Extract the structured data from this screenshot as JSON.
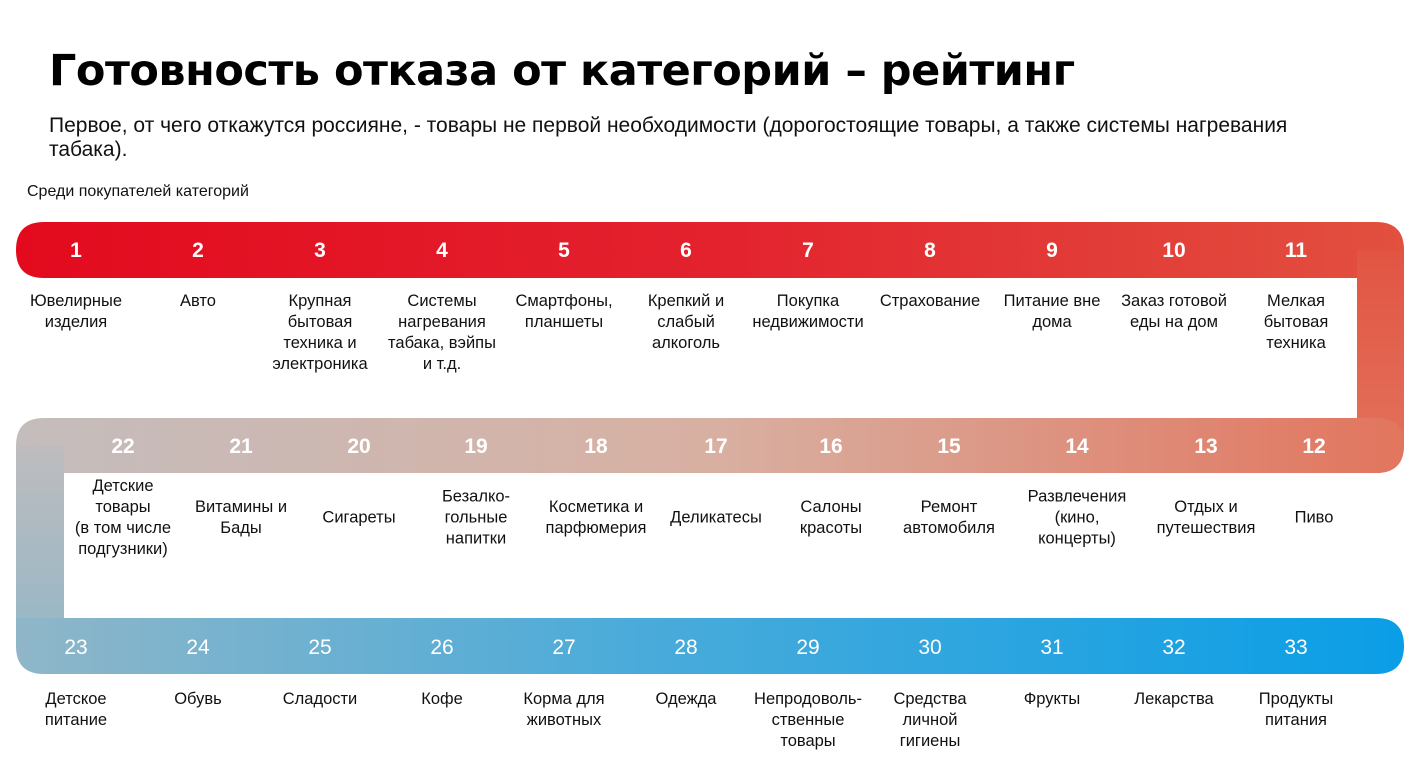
{
  "title": "Готовность отказа от категорий – рейтинг",
  "subtitle": "Первое, от чего откажутся россияне, - товары не первой необходимости (дорогостоящие товары, а также системы нагревания табака).",
  "note": "Среди покупателей категорий",
  "colors": {
    "red": "#e30a1e",
    "blue": "#0a9ee6",
    "mid": "#c9b3ad",
    "label": "#111111"
  },
  "rows": [
    {
      "direction": "left-to-right",
      "items": [
        {
          "rank": "1",
          "label": [
            "Ювелирные",
            "изделия"
          ]
        },
        {
          "rank": "2",
          "label": [
            "Авто"
          ]
        },
        {
          "rank": "3",
          "label": [
            "Крупная",
            "бытовая",
            "техника и",
            "электроника"
          ]
        },
        {
          "rank": "4",
          "label": [
            "Системы",
            "нагревания",
            "табака, вэйпы",
            "и т.д."
          ]
        },
        {
          "rank": "5",
          "label": [
            "Смартфоны,",
            "планшеты"
          ]
        },
        {
          "rank": "6",
          "label": [
            "Крепкий и",
            "слабый",
            "алкоголь"
          ]
        },
        {
          "rank": "7",
          "label": [
            "Покупка",
            "недвижимости"
          ]
        },
        {
          "rank": "8",
          "label": [
            "Страхование"
          ]
        },
        {
          "rank": "9",
          "label": [
            "Питание вне",
            "дома"
          ]
        },
        {
          "rank": "10",
          "label": [
            "Заказ готовой",
            "еды на дом"
          ]
        },
        {
          "rank": "11",
          "label": [
            "Мелкая",
            "бытовая",
            "техника"
          ]
        }
      ]
    },
    {
      "direction": "right-to-left",
      "items": [
        {
          "rank": "12",
          "label": [
            "Пиво"
          ]
        },
        {
          "rank": "13",
          "label": [
            "Отдых и",
            "путешествия"
          ]
        },
        {
          "rank": "14",
          "label": [
            "Развлечения",
            "(кино,",
            "концерты)"
          ]
        },
        {
          "rank": "15",
          "label": [
            "Ремонт",
            "автомобиля"
          ]
        },
        {
          "rank": "16",
          "label": [
            "Салоны",
            "красоты"
          ]
        },
        {
          "rank": "17",
          "label": [
            "Деликатесы"
          ]
        },
        {
          "rank": "18",
          "label": [
            "Косметика и",
            "парфюмерия"
          ]
        },
        {
          "rank": "19",
          "label": [
            "Безалко-",
            "гольные",
            "напитки"
          ]
        },
        {
          "rank": "20",
          "label": [
            "Сигареты"
          ]
        },
        {
          "rank": "21",
          "label": [
            "Витамины и",
            "Бады"
          ]
        },
        {
          "rank": "22",
          "label": [
            "Детские",
            "товары",
            "(в том числе",
            "подгузники)"
          ]
        }
      ]
    },
    {
      "direction": "left-to-right",
      "items": [
        {
          "rank": "23",
          "label": [
            "Детское",
            "питание"
          ]
        },
        {
          "rank": "24",
          "label": [
            "Обувь"
          ]
        },
        {
          "rank": "25",
          "label": [
            "Сладости"
          ]
        },
        {
          "rank": "26",
          "label": [
            "Кофе"
          ]
        },
        {
          "rank": "27",
          "label": [
            "Корма для",
            "животных"
          ]
        },
        {
          "rank": "28",
          "label": [
            "Одежда"
          ]
        },
        {
          "rank": "29",
          "label": [
            "Непродоволь-",
            "ственные",
            "товары"
          ]
        },
        {
          "rank": "30",
          "label": [
            "Средства",
            "личной",
            "гигиены"
          ]
        },
        {
          "rank": "31",
          "label": [
            "Фрукты"
          ]
        },
        {
          "rank": "32",
          "label": [
            "Лекарства"
          ]
        },
        {
          "rank": "33",
          "label": [
            "Продукты",
            "питания"
          ]
        }
      ]
    }
  ]
}
